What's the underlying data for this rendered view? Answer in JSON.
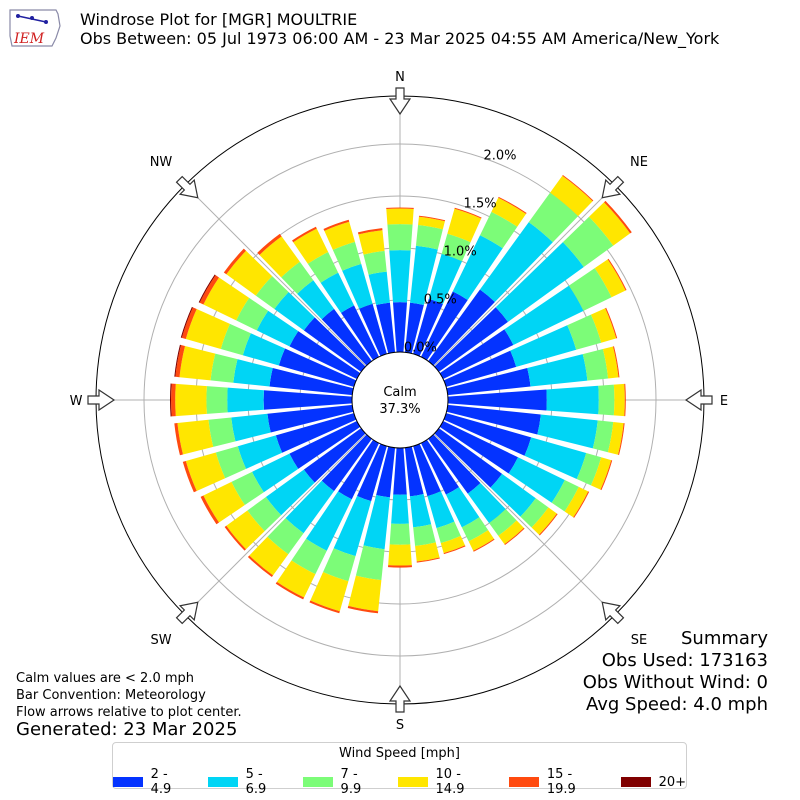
{
  "header": {
    "title_line1": "Windrose Plot for [MGR] MOULTRIE",
    "title_line2": "Obs Between: 05 Jul 1973 06:00 AM - 23 Mar 2025 04:55 AM America/New_York",
    "logo_text": "IEM"
  },
  "summary": {
    "heading": "Summary",
    "obs_used": "Obs Used: 173163",
    "obs_without_wind": "Obs Without Wind: 0",
    "avg_speed": "Avg Speed: 4.0 mph"
  },
  "notes": {
    "calm_note": "Calm values are < 2.0 mph",
    "bar_convention": "Bar Convention: Meteorology",
    "flow_arrows": "Flow arrows relative to plot center.",
    "generated": "Generated: 23 Mar 2025"
  },
  "legend": {
    "title": "Wind Speed [mph]",
    "items": [
      {
        "label": "2 - 4.9",
        "color": "#0433ff"
      },
      {
        "label": "5 - 6.9",
        "color": "#00d5f5"
      },
      {
        "label": "7 - 9.9",
        "color": "#7cfc78"
      },
      {
        "label": "10 - 14.9",
        "color": "#ffe600"
      },
      {
        "label": "15 - 19.9",
        "color": "#ff4a0f"
      },
      {
        "label": "20+",
        "color": "#800000"
      }
    ]
  },
  "chart_data": {
    "type": "windrose",
    "calm_label": "Calm",
    "calm_value": "37.3%",
    "radial_ticks": [
      0.0,
      0.5,
      1.0,
      1.5,
      2.0
    ],
    "radial_tick_labels": [
      "0.0%",
      "0.5%",
      "1.0%",
      "1.5%",
      "2.0%"
    ],
    "rmax": 2.5,
    "compass_labels": [
      "N",
      "NE",
      "E",
      "SE",
      "S",
      "SW",
      "W",
      "NW"
    ],
    "direction_count": 36,
    "directions_deg": [
      0,
      10,
      20,
      30,
      40,
      50,
      60,
      70,
      80,
      90,
      100,
      110,
      120,
      130,
      140,
      150,
      160,
      170,
      180,
      190,
      200,
      210,
      220,
      230,
      240,
      250,
      260,
      270,
      280,
      290,
      300,
      310,
      320,
      330,
      340,
      350
    ],
    "series": [
      {
        "name": "2 - 4.9",
        "color": "#0433ff",
        "values": [
          0.48,
          0.48,
          0.55,
          0.7,
          0.85,
          0.82,
          0.75,
          0.7,
          0.8,
          0.95,
          0.9,
          0.85,
          0.8,
          0.75,
          0.65,
          0.55,
          0.5,
          0.47,
          0.45,
          0.48,
          0.55,
          0.6,
          0.62,
          0.68,
          0.72,
          0.78,
          0.82,
          0.85,
          0.8,
          0.75,
          0.72,
          0.68,
          0.62,
          0.55,
          0.5,
          0.48
        ]
      },
      {
        "name": "5 - 6.9",
        "color": "#00d5f5",
        "values": [
          0.5,
          0.55,
          0.45,
          0.6,
          0.8,
          0.9,
          0.75,
          0.6,
          0.55,
          0.5,
          0.55,
          0.55,
          0.5,
          0.4,
          0.35,
          0.35,
          0.32,
          0.3,
          0.28,
          0.5,
          0.55,
          0.55,
          0.5,
          0.45,
          0.4,
          0.38,
          0.35,
          0.35,
          0.35,
          0.36,
          0.35,
          0.35,
          0.34,
          0.35,
          0.4,
          0.3
        ]
      },
      {
        "name": "7 - 9.9",
        "color": "#7cfc78",
        "values": [
          0.25,
          0.2,
          0.2,
          0.25,
          0.35,
          0.35,
          0.3,
          0.25,
          0.2,
          0.15,
          0.15,
          0.15,
          0.15,
          0.15,
          0.15,
          0.15,
          0.15,
          0.18,
          0.2,
          0.3,
          0.25,
          0.25,
          0.25,
          0.22,
          0.22,
          0.22,
          0.22,
          0.2,
          0.22,
          0.22,
          0.22,
          0.22,
          0.22,
          0.22,
          0.22,
          0.2
        ]
      },
      {
        "name": "10 - 14.9",
        "color": "#ffe600",
        "values": [
          0.15,
          0.08,
          0.25,
          0.15,
          0.2,
          0.2,
          0.15,
          0.15,
          0.1,
          0.1,
          0.1,
          0.1,
          0.1,
          0.1,
          0.1,
          0.1,
          0.1,
          0.15,
          0.2,
          0.3,
          0.3,
          0.25,
          0.25,
          0.25,
          0.3,
          0.3,
          0.3,
          0.3,
          0.3,
          0.35,
          0.35,
          0.35,
          0.3,
          0.25,
          0.2,
          0.2
        ]
      },
      {
        "name": "15 - 19.9",
        "color": "#ff4a0f",
        "values": [
          0.01,
          0.01,
          0.01,
          0.01,
          0.01,
          0.02,
          0.01,
          0.01,
          0.01,
          0.01,
          0.01,
          0.01,
          0.01,
          0.01,
          0.01,
          0.01,
          0.01,
          0.01,
          0.02,
          0.02,
          0.02,
          0.02,
          0.02,
          0.02,
          0.03,
          0.03,
          0.03,
          0.04,
          0.04,
          0.04,
          0.04,
          0.03,
          0.03,
          0.02,
          0.02,
          0.02
        ]
      },
      {
        "name": "20+",
        "color": "#800000",
        "values": [
          0,
          0,
          0,
          0,
          0,
          0,
          0,
          0,
          0,
          0,
          0,
          0,
          0,
          0,
          0,
          0,
          0,
          0,
          0,
          0,
          0,
          0,
          0,
          0,
          0,
          0,
          0,
          0.01,
          0.01,
          0.01,
          0.01,
          0,
          0,
          0,
          0,
          0
        ]
      }
    ]
  }
}
